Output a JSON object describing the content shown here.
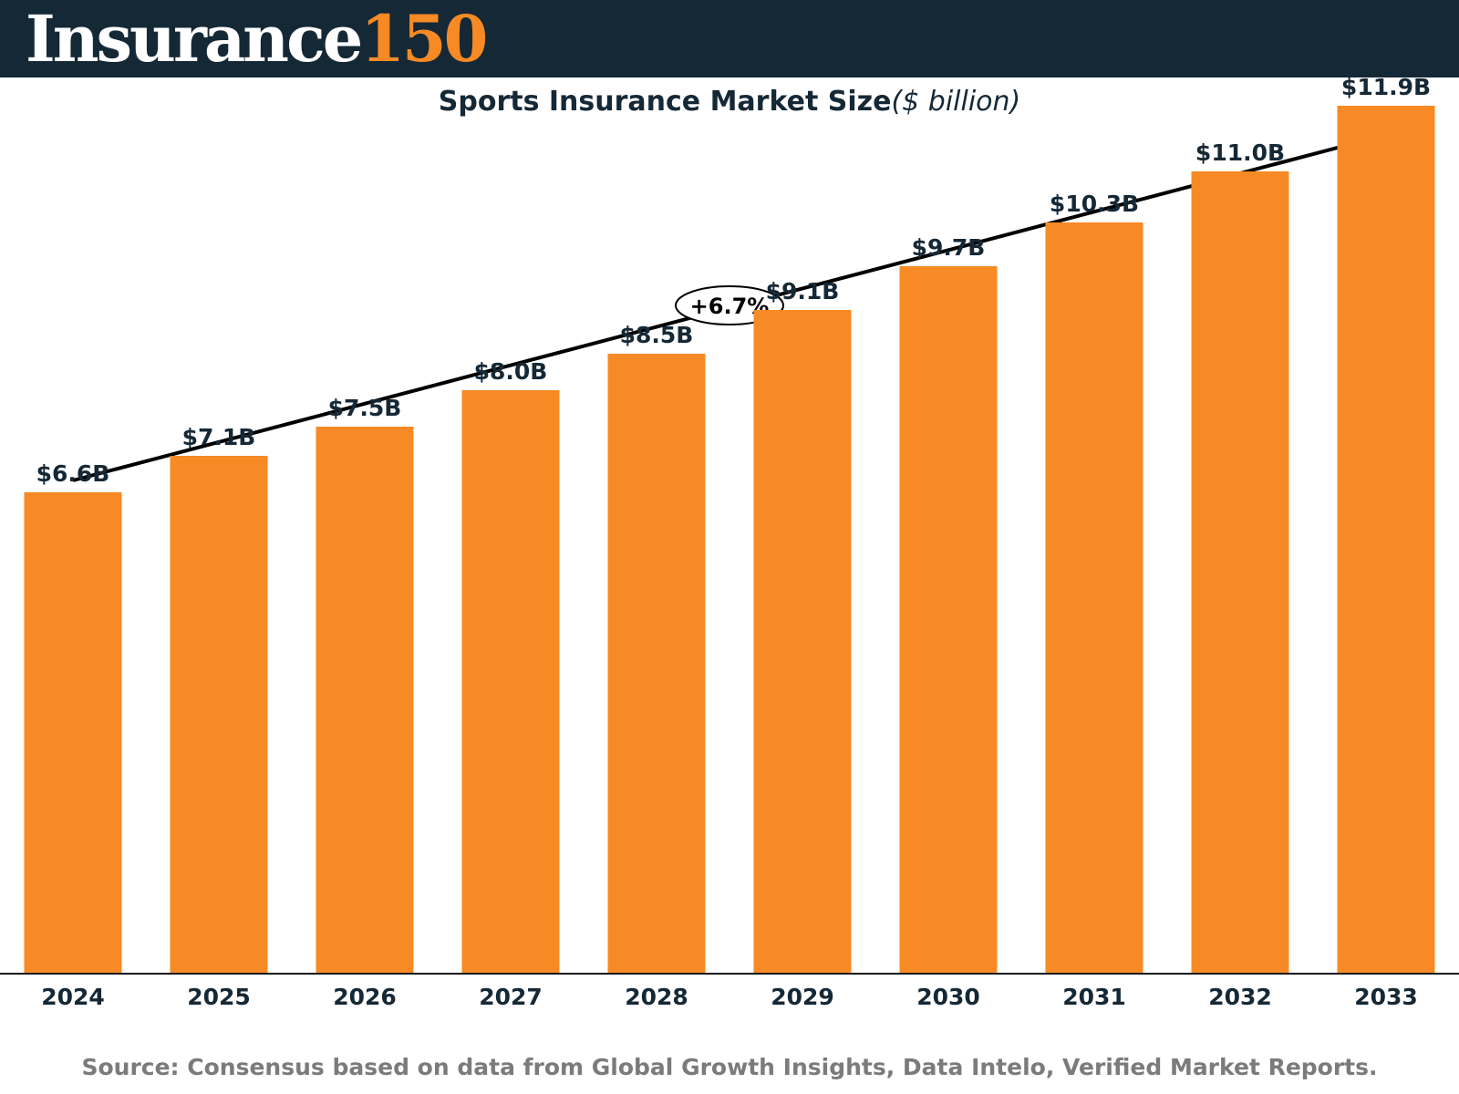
{
  "header": {
    "logo_word": "Insurance",
    "logo_number": "150",
    "background": "#152836",
    "number_color": "#f78a24"
  },
  "chart_data": {
    "type": "bar",
    "title": "Sports Insurance Market Size",
    "title_unit": "($ billion)",
    "categories": [
      "2024",
      "2025",
      "2026",
      "2027",
      "2028",
      "2029",
      "2030",
      "2031",
      "2032",
      "2033"
    ],
    "values": [
      6.6,
      7.1,
      7.5,
      8.0,
      8.5,
      9.1,
      9.7,
      10.3,
      11.0,
      11.9
    ],
    "data_labels": [
      "$6.6B",
      "$7.1B",
      "$7.5B",
      "$8.0B",
      "$8.5B",
      "$9.1B",
      "$9.7B",
      "$10.3B",
      "$11.0B",
      "$11.9B"
    ],
    "annotation": "+6.7%",
    "bar_color": "#f78a24",
    "text_color": "#152836",
    "grid": false
  },
  "source": "Source: Consensus based on data from Global Growth Insights, Data Intelo,    Verified Market Reports."
}
